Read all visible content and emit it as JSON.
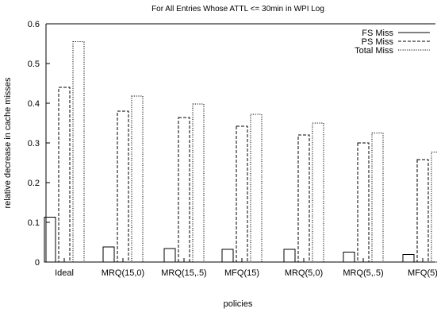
{
  "chart_data": {
    "type": "bar",
    "title": "For All Entries Whose ATTL <= 30min in WPI Log",
    "xlabel": "policies",
    "ylabel": "relative decrease in cache misses",
    "ylim": [
      0,
      0.6
    ],
    "yticks": [
      "0",
      "0.1",
      "0.2",
      "0.3",
      "0.4",
      "0.5",
      "0.6"
    ],
    "grid": false,
    "legend_position": "top-right",
    "categories": [
      "Ideal",
      "MRQ(15,0)",
      "MRQ(15,.5)",
      "MFQ(15)",
      "MRQ(5,0)",
      "MRQ(5,.5)",
      "MFQ(5)"
    ],
    "series": [
      {
        "name": "FS Miss",
        "line_style": "solid",
        "values": [
          0.113,
          0.038,
          0.034,
          0.032,
          0.032,
          0.025,
          0.019
        ]
      },
      {
        "name": "PS Miss",
        "line_style": "dashed",
        "values": [
          0.44,
          0.38,
          0.364,
          0.342,
          0.32,
          0.3,
          0.258
        ]
      },
      {
        "name": "Total Miss",
        "line_style": "dotted",
        "values": [
          0.555,
          0.418,
          0.398,
          0.372,
          0.35,
          0.325,
          0.277
        ]
      }
    ],
    "colors": {
      "axis": "#000000",
      "bar_stroke": "#000000",
      "background": "#ffffff"
    }
  }
}
